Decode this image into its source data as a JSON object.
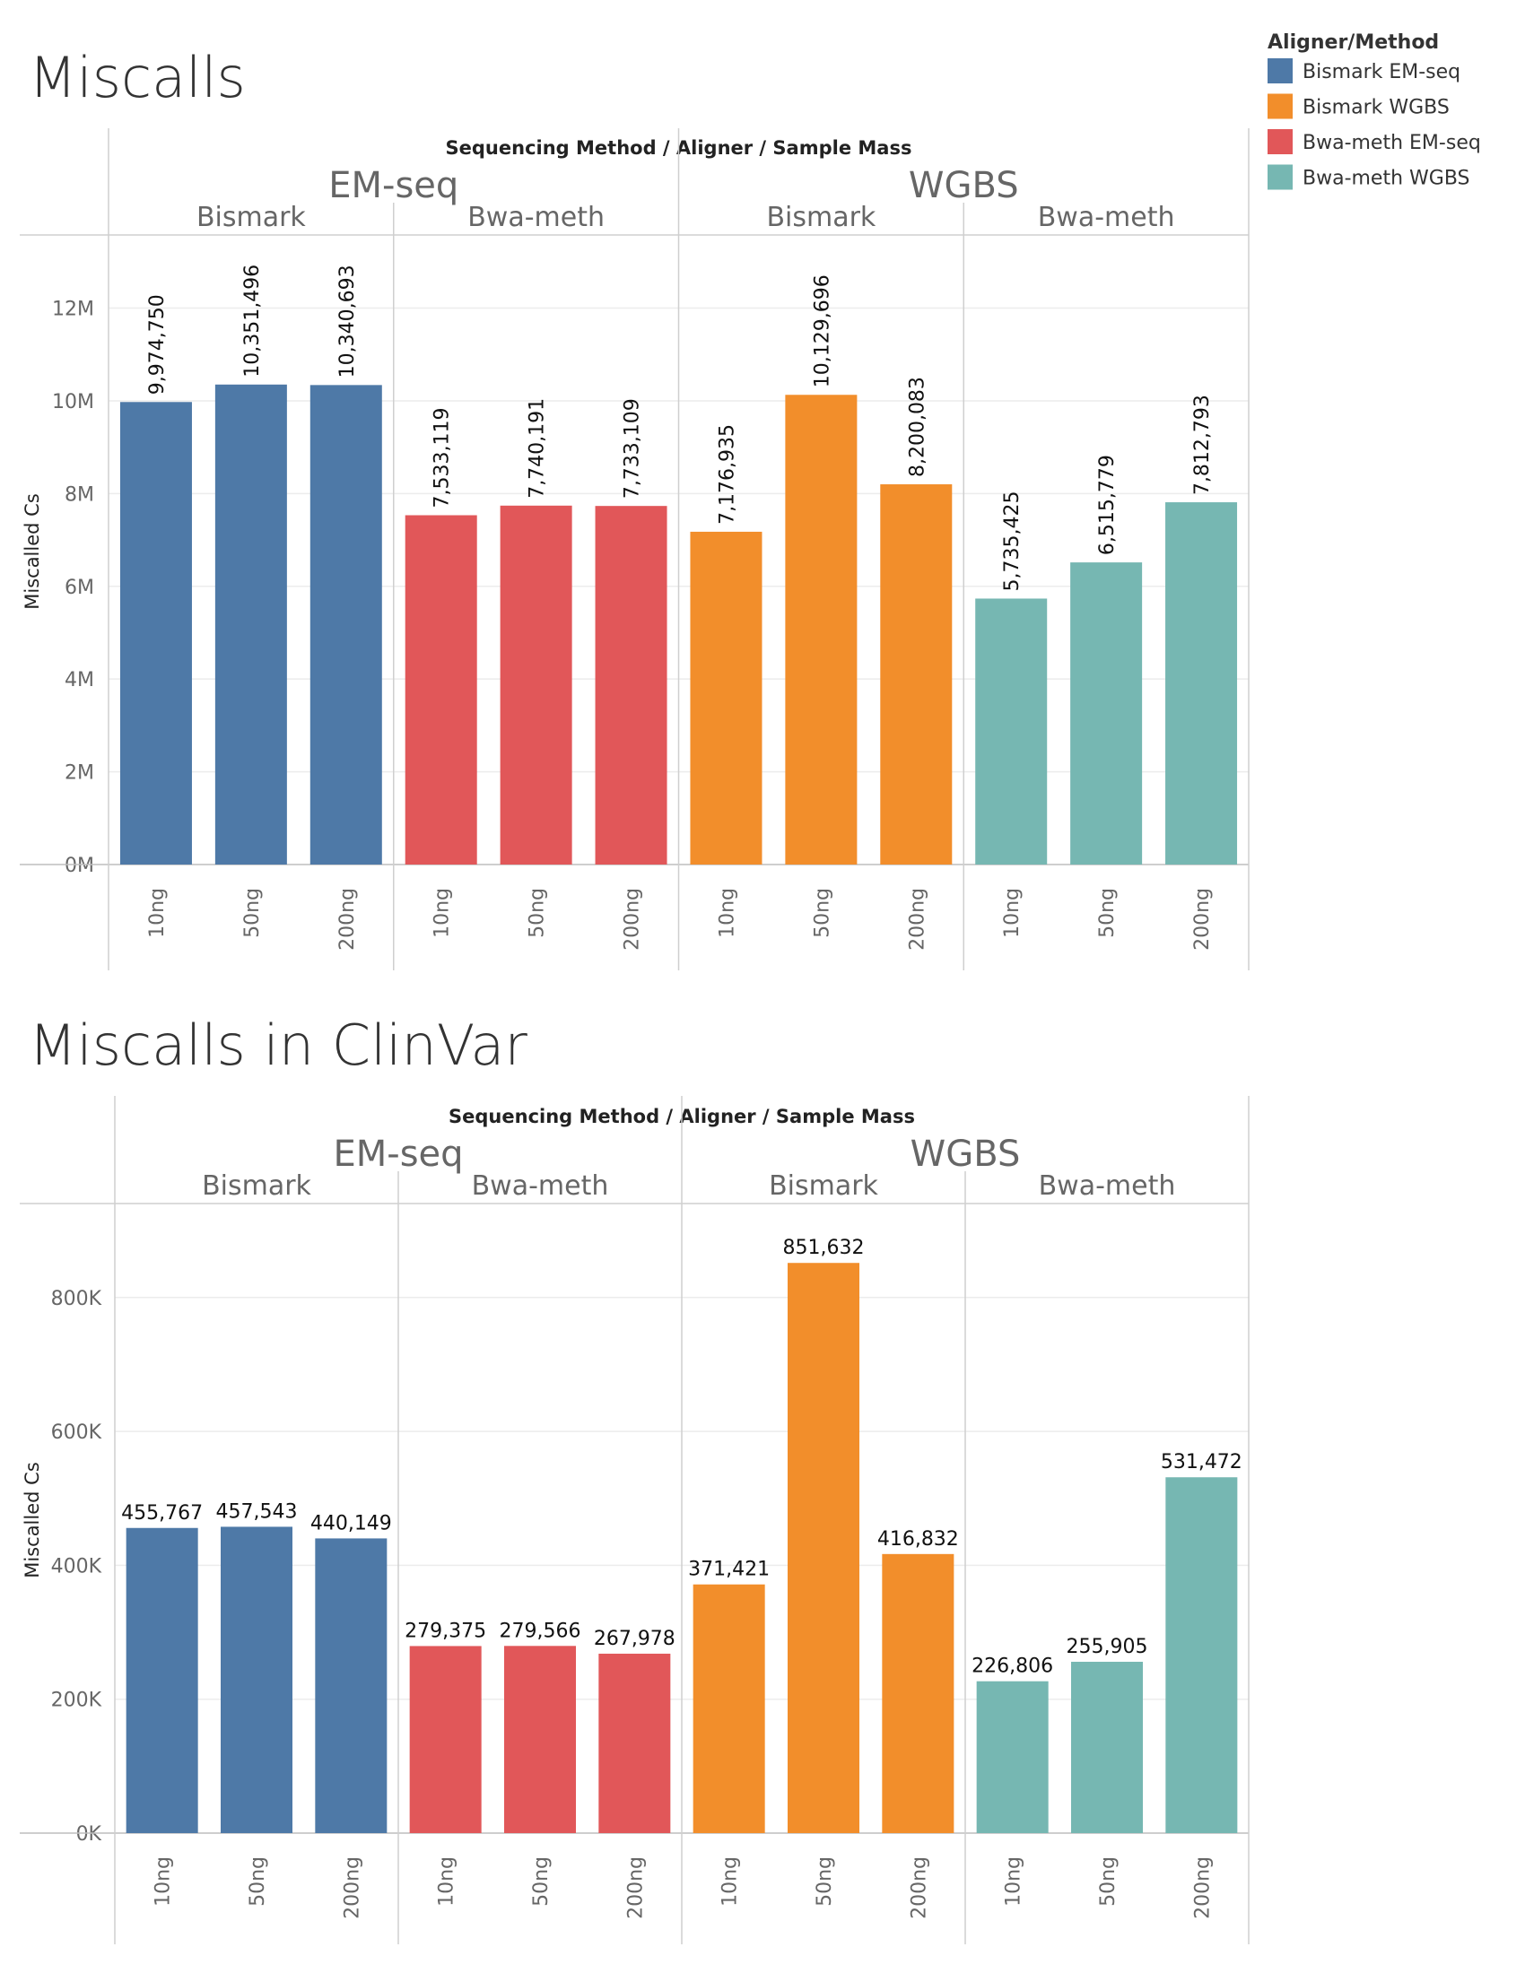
{
  "legend": {
    "title": "Aligner/Method",
    "items": [
      {
        "label": "Bismark EM-seq",
        "color": "#4e79a7"
      },
      {
        "label": "Bismark WGBS",
        "color": "#f28e2b"
      },
      {
        "label": "Bwa-meth EM-seq",
        "color": "#e15759"
      },
      {
        "label": "Bwa-meth WGBS",
        "color": "#76b7b2"
      }
    ]
  },
  "chart_data": [
    {
      "type": "bar",
      "title": "Miscalls",
      "header": "Sequencing Method / Aligner / Sample Mass",
      "ylabel": "Miscalled Cs",
      "ylim": [
        0,
        13500000
      ],
      "yticks": [
        0,
        2000000,
        4000000,
        6000000,
        8000000,
        10000000,
        12000000
      ],
      "ytick_labels": [
        "0M",
        "2M",
        "4M",
        "6M",
        "8M",
        "10M",
        "12M"
      ],
      "label_orientation": "vertical",
      "groups": [
        {
          "method": "EM-seq",
          "aligners": [
            {
              "aligner": "Bismark",
              "series": "Bismark EM-seq",
              "categories": [
                "10ng",
                "50ng",
                "200ng"
              ],
              "values": [
                9974750,
                10351496,
                10340693
              ],
              "labels": [
                "9,974,750",
                "10,351,496",
                "10,340,693"
              ]
            },
            {
              "aligner": "Bwa-meth",
              "series": "Bwa-meth EM-seq",
              "categories": [
                "10ng",
                "50ng",
                "200ng"
              ],
              "values": [
                7533119,
                7740191,
                7733109
              ],
              "labels": [
                "7,533,119",
                "7,740,191",
                "7,733,109"
              ]
            }
          ]
        },
        {
          "method": "WGBS",
          "aligners": [
            {
              "aligner": "Bismark",
              "series": "Bismark WGBS",
              "categories": [
                "10ng",
                "50ng",
                "200ng"
              ],
              "values": [
                7176935,
                10129696,
                8200083
              ],
              "labels": [
                "7,176,935",
                "10,129,696",
                "8,200,083"
              ]
            },
            {
              "aligner": "Bwa-meth",
              "series": "Bwa-meth WGBS",
              "categories": [
                "10ng",
                "50ng",
                "200ng"
              ],
              "values": [
                5735425,
                6515779,
                7812793
              ],
              "labels": [
                "5,735,425",
                "6,515,779",
                "7,812,793"
              ]
            }
          ]
        }
      ]
    },
    {
      "type": "bar",
      "title": "Miscalls in ClinVar",
      "header": "Sequencing Method / Aligner / Sample Mass",
      "ylabel": "Miscalled Cs",
      "ylim": [
        0,
        935000
      ],
      "yticks": [
        0,
        200000,
        400000,
        600000,
        800000
      ],
      "ytick_labels": [
        "0K",
        "200K",
        "400K",
        "600K",
        "800K"
      ],
      "label_orientation": "horizontal",
      "groups": [
        {
          "method": "EM-seq",
          "aligners": [
            {
              "aligner": "Bismark",
              "series": "Bismark EM-seq",
              "categories": [
                "10ng",
                "50ng",
                "200ng"
              ],
              "values": [
                455767,
                457543,
                440149
              ],
              "labels": [
                "455,767",
                "457,543",
                "440,149"
              ]
            },
            {
              "aligner": "Bwa-meth",
              "series": "Bwa-meth EM-seq",
              "categories": [
                "10ng",
                "50ng",
                "200ng"
              ],
              "values": [
                279375,
                279566,
                267978
              ],
              "labels": [
                "279,375",
                "279,566",
                "267,978"
              ]
            }
          ]
        },
        {
          "method": "WGBS",
          "aligners": [
            {
              "aligner": "Bismark",
              "series": "Bismark WGBS",
              "categories": [
                "10ng",
                "50ng",
                "200ng"
              ],
              "values": [
                371421,
                851632,
                416832
              ],
              "labels": [
                "371,421",
                "851,632",
                "416,832"
              ]
            },
            {
              "aligner": "Bwa-meth",
              "series": "Bwa-meth WGBS",
              "categories": [
                "10ng",
                "50ng",
                "200ng"
              ],
              "values": [
                226806,
                255905,
                531472
              ],
              "labels": [
                "226,806",
                "255,905",
                "531,472"
              ]
            }
          ]
        }
      ]
    }
  ]
}
